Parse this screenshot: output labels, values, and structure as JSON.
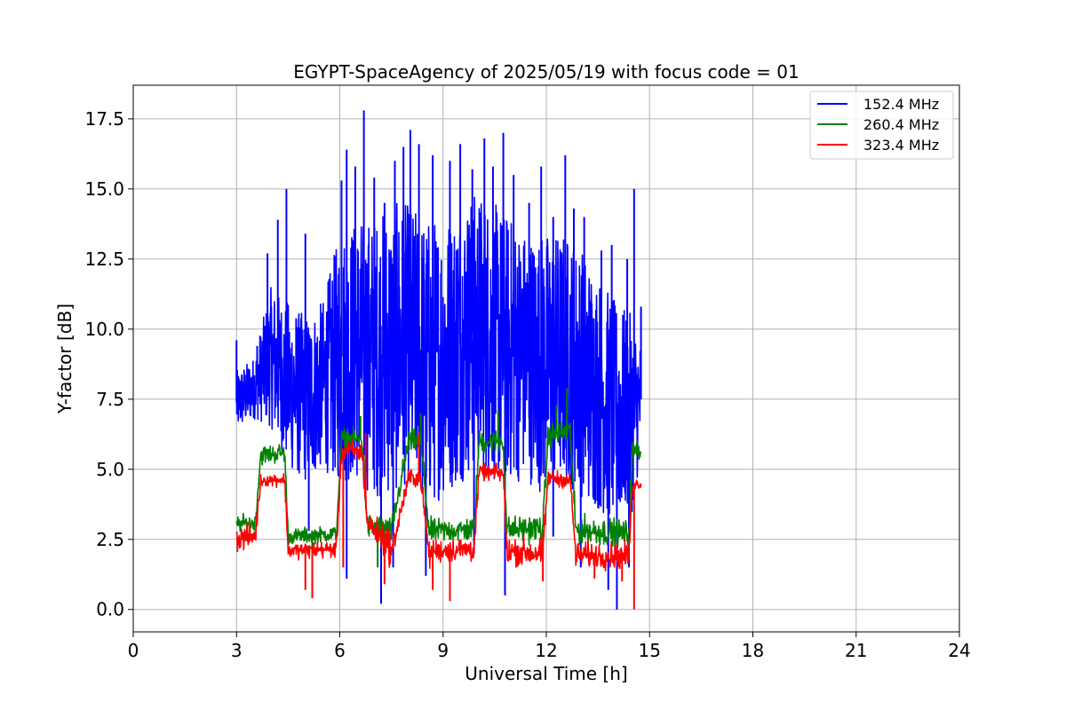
{
  "chart_data": {
    "type": "line",
    "title": "EGYPT-SpaceAgency of 2025/05/19 with focus code = 01",
    "xlabel": "Universal Time [h]",
    "ylabel": "Y-factor [dB]",
    "xlim": [
      0,
      24
    ],
    "ylim": [
      -0.8,
      18.7
    ],
    "x_ticks": [
      0,
      3,
      6,
      9,
      12,
      15,
      18,
      21,
      24
    ],
    "x_tick_labels": [
      "0",
      "3",
      "6",
      "9",
      "12",
      "15",
      "18",
      "21",
      "24"
    ],
    "y_ticks": [
      0.0,
      2.5,
      5.0,
      7.5,
      10.0,
      12.5,
      15.0,
      17.5
    ],
    "y_tick_labels": [
      "0.0",
      "2.5",
      "5.0",
      "7.5",
      "10.0",
      "12.5",
      "15.0",
      "17.5"
    ],
    "grid": true,
    "legend_position": "top-right",
    "series": [
      {
        "name": "152.4 MHz",
        "color": "#0000ff",
        "band": {
          "x": [
            3.0,
            3.5,
            4.0,
            4.5,
            5.0,
            5.5,
            6.0,
            6.5,
            7.0,
            7.5,
            8.0,
            8.5,
            9.0,
            9.5,
            10.0,
            10.5,
            11.0,
            11.5,
            12.0,
            12.5,
            13.0,
            13.5,
            14.0,
            14.5,
            14.75
          ],
          "low": [
            6.3,
            6.8,
            6.5,
            5.0,
            4.5,
            5.0,
            4.5,
            4.5,
            4.0,
            4.0,
            4.5,
            3.5,
            4.0,
            4.5,
            5.0,
            4.5,
            4.5,
            4.5,
            4.0,
            4.5,
            4.0,
            3.5,
            3.0,
            3.5,
            5.5
          ],
          "high": [
            8.5,
            9.0,
            11.5,
            11.0,
            10.5,
            11.0,
            13.5,
            14.0,
            14.0,
            14.5,
            14.5,
            14.0,
            14.0,
            14.5,
            15.0,
            14.5,
            14.0,
            13.5,
            13.5,
            13.5,
            13.0,
            12.0,
            11.0,
            10.5,
            9.5
          ]
        },
        "spikes": [
          {
            "x": 3.0,
            "y": 9.6
          },
          {
            "x": 3.6,
            "y": 9.4
          },
          {
            "x": 3.9,
            "y": 12.7
          },
          {
            "x": 4.2,
            "y": 13.9
          },
          {
            "x": 4.45,
            "y": 15.0
          },
          {
            "x": 5.0,
            "y": 13.4
          },
          {
            "x": 5.5,
            "y": 10.0
          },
          {
            "x": 5.85,
            "y": 12.6
          },
          {
            "x": 6.05,
            "y": 15.3
          },
          {
            "x": 6.2,
            "y": 16.4
          },
          {
            "x": 6.45,
            "y": 15.8
          },
          {
            "x": 6.7,
            "y": 17.8
          },
          {
            "x": 7.0,
            "y": 15.4
          },
          {
            "x": 7.3,
            "y": 14.5
          },
          {
            "x": 7.6,
            "y": 16.0
          },
          {
            "x": 7.85,
            "y": 16.5
          },
          {
            "x": 8.05,
            "y": 17.1
          },
          {
            "x": 8.3,
            "y": 16.6
          },
          {
            "x": 8.7,
            "y": 16.2
          },
          {
            "x": 9.2,
            "y": 16.0
          },
          {
            "x": 9.5,
            "y": 16.6
          },
          {
            "x": 9.85,
            "y": 15.7
          },
          {
            "x": 10.2,
            "y": 16.8
          },
          {
            "x": 10.45,
            "y": 15.8
          },
          {
            "x": 10.75,
            "y": 17.0
          },
          {
            "x": 11.05,
            "y": 15.5
          },
          {
            "x": 11.5,
            "y": 14.5
          },
          {
            "x": 11.85,
            "y": 15.8
          },
          {
            "x": 12.2,
            "y": 14.0
          },
          {
            "x": 12.55,
            "y": 16.2
          },
          {
            "x": 12.8,
            "y": 14.3
          },
          {
            "x": 13.1,
            "y": 14.0
          },
          {
            "x": 13.6,
            "y": 12.8
          },
          {
            "x": 13.9,
            "y": 13.0
          },
          {
            "x": 14.35,
            "y": 12.5
          },
          {
            "x": 14.55,
            "y": 15.0
          },
          {
            "x": 14.75,
            "y": 10.8
          },
          {
            "x": 6.2,
            "y": 1.1
          },
          {
            "x": 7.2,
            "y": 0.2
          },
          {
            "x": 7.55,
            "y": 1.5
          },
          {
            "x": 8.5,
            "y": 1.2
          },
          {
            "x": 10.8,
            "y": 0.5
          },
          {
            "x": 13.0,
            "y": 1.5
          },
          {
            "x": 13.8,
            "y": 0.7
          },
          {
            "x": 14.05,
            "y": 0.0
          },
          {
            "x": 14.4,
            "y": 1.5
          },
          {
            "x": 9.9,
            "y": 2.0
          },
          {
            "x": 12.2,
            "y": 2.6
          },
          {
            "x": 5.1,
            "y": 2.8
          }
        ]
      },
      {
        "name": "260.4 MHz",
        "color": "#008000",
        "band": {
          "x": [
            3.0,
            3.55,
            3.7,
            4.4,
            4.5,
            5.9,
            6.05,
            6.65,
            6.8,
            7.4,
            7.5,
            8.0,
            8.35,
            8.6,
            8.7,
            9.9,
            10.05,
            10.75,
            10.85,
            11.9,
            12.05,
            12.7,
            12.85,
            14.4,
            14.5,
            14.75
          ],
          "low": [
            2.6,
            2.7,
            5.0,
            5.1,
            2.2,
            2.3,
            5.6,
            5.5,
            2.3,
            2.1,
            2.2,
            5.4,
            5.4,
            2.0,
            2.2,
            2.2,
            5.4,
            5.4,
            2.2,
            2.2,
            5.6,
            5.7,
            2.1,
            2.0,
            5.0,
            5.2
          ],
          "high": [
            3.5,
            3.5,
            6.0,
            6.1,
            3.0,
            3.1,
            6.6,
            6.6,
            3.6,
            3.6,
            3.4,
            6.6,
            6.6,
            3.5,
            3.4,
            3.5,
            6.6,
            6.6,
            3.5,
            3.6,
            6.8,
            7.0,
            3.6,
            3.4,
            6.3,
            6.2
          ]
        },
        "spikes": [
          {
            "x": 7.1,
            "y": 1.5
          },
          {
            "x": 12.6,
            "y": 7.9
          },
          {
            "x": 12.3,
            "y": 7.3
          },
          {
            "x": 8.35,
            "y": 7.0
          },
          {
            "x": 10.6,
            "y": 7.1
          },
          {
            "x": 6.6,
            "y": 6.9
          },
          {
            "x": 5.2,
            "y": 1.9
          }
        ]
      },
      {
        "name": "323.4 MHz",
        "color": "#ff0000",
        "band": {
          "x": [
            3.0,
            3.55,
            3.7,
            4.4,
            4.5,
            5.9,
            6.05,
            6.65,
            6.8,
            7.4,
            7.5,
            8.0,
            8.35,
            8.6,
            8.7,
            9.9,
            10.05,
            10.75,
            10.85,
            11.9,
            12.05,
            12.7,
            12.85,
            14.4,
            14.5,
            14.75
          ],
          "low": [
            1.9,
            2.0,
            4.3,
            4.3,
            1.7,
            1.7,
            5.1,
            5.0,
            2.6,
            1.3,
            1.5,
            4.2,
            4.2,
            1.2,
            1.5,
            1.5,
            4.5,
            4.4,
            1.4,
            1.2,
            4.3,
            4.2,
            1.3,
            1.2,
            4.1,
            4.2
          ],
          "high": [
            3.1,
            3.3,
            4.9,
            5.0,
            2.5,
            2.6,
            6.2,
            6.2,
            3.6,
            3.4,
            2.6,
            5.2,
            5.2,
            2.6,
            2.7,
            2.8,
            5.3,
            5.3,
            2.8,
            2.8,
            5.1,
            5.0,
            2.6,
            2.6,
            4.8,
            4.8
          ]
        },
        "spikes": [
          {
            "x": 5.0,
            "y": 0.7
          },
          {
            "x": 5.2,
            "y": 0.4
          },
          {
            "x": 6.1,
            "y": 1.5
          },
          {
            "x": 6.75,
            "y": 6.3
          },
          {
            "x": 8.3,
            "y": 6.3
          },
          {
            "x": 8.7,
            "y": 0.7
          },
          {
            "x": 9.2,
            "y": 0.3
          },
          {
            "x": 11.9,
            "y": 1.0
          },
          {
            "x": 14.55,
            "y": 0.0
          },
          {
            "x": 14.2,
            "y": 1.0
          },
          {
            "x": 13.4,
            "y": 1.1
          },
          {
            "x": 7.3,
            "y": 0.9
          }
        ]
      }
    ]
  }
}
